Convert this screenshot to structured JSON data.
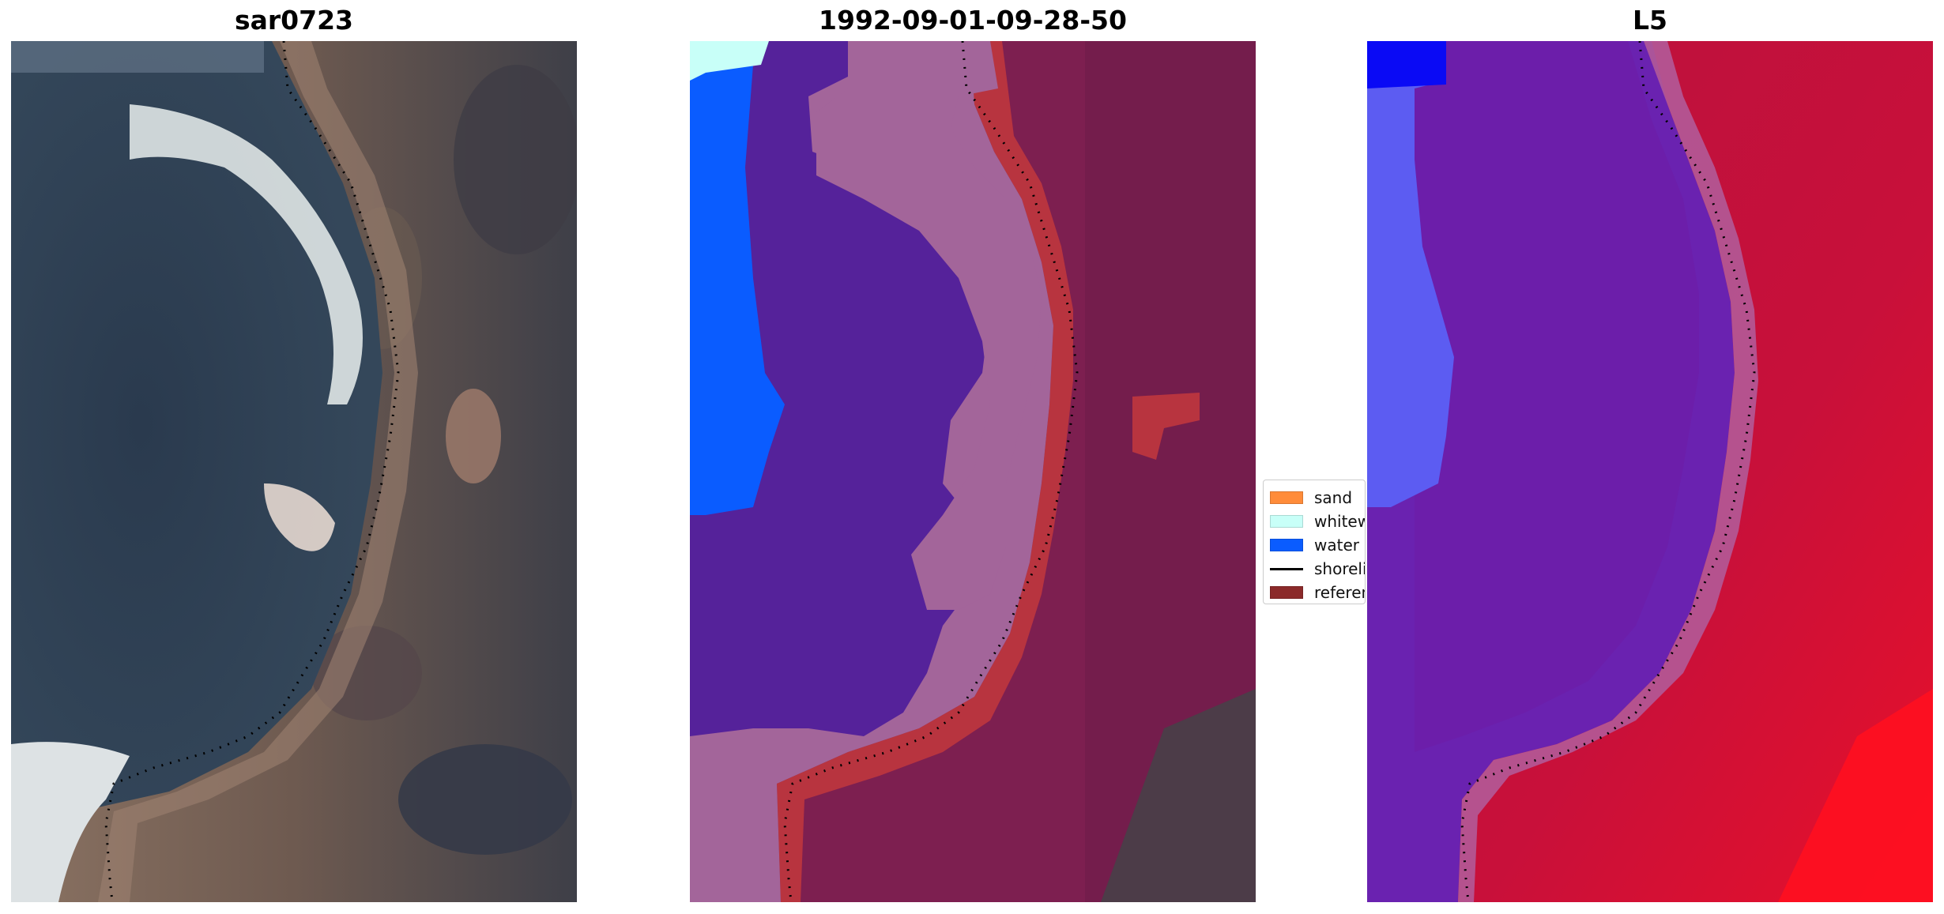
{
  "panels": [
    {
      "title": "sar0723"
    },
    {
      "title": "1992-09-01-09-28-50"
    },
    {
      "title": "L5"
    }
  ],
  "legend": {
    "items": [
      {
        "label": "sand",
        "color": "#ff8c3a"
      },
      {
        "label": "whitewater",
        "color": "#c8fff8"
      },
      {
        "label": "water",
        "color": "#0a5cff"
      },
      {
        "label": "shoreline",
        "color": "#000000"
      },
      {
        "label": "reference",
        "color": "#8b2a2a"
      }
    ]
  },
  "colors": {
    "deep_water": "#2c3b4e",
    "surf_white": "#e8ecec",
    "land_brown": "#7a6152",
    "class_water_body": "#55229a",
    "class_sand_band": "#a3659a",
    "class_land": "#7d1f50",
    "class_reference": "#b8343f",
    "l5_blue": "#0000f5",
    "l5_purple": "#6a22b0",
    "l5_red": "#c8103a"
  }
}
